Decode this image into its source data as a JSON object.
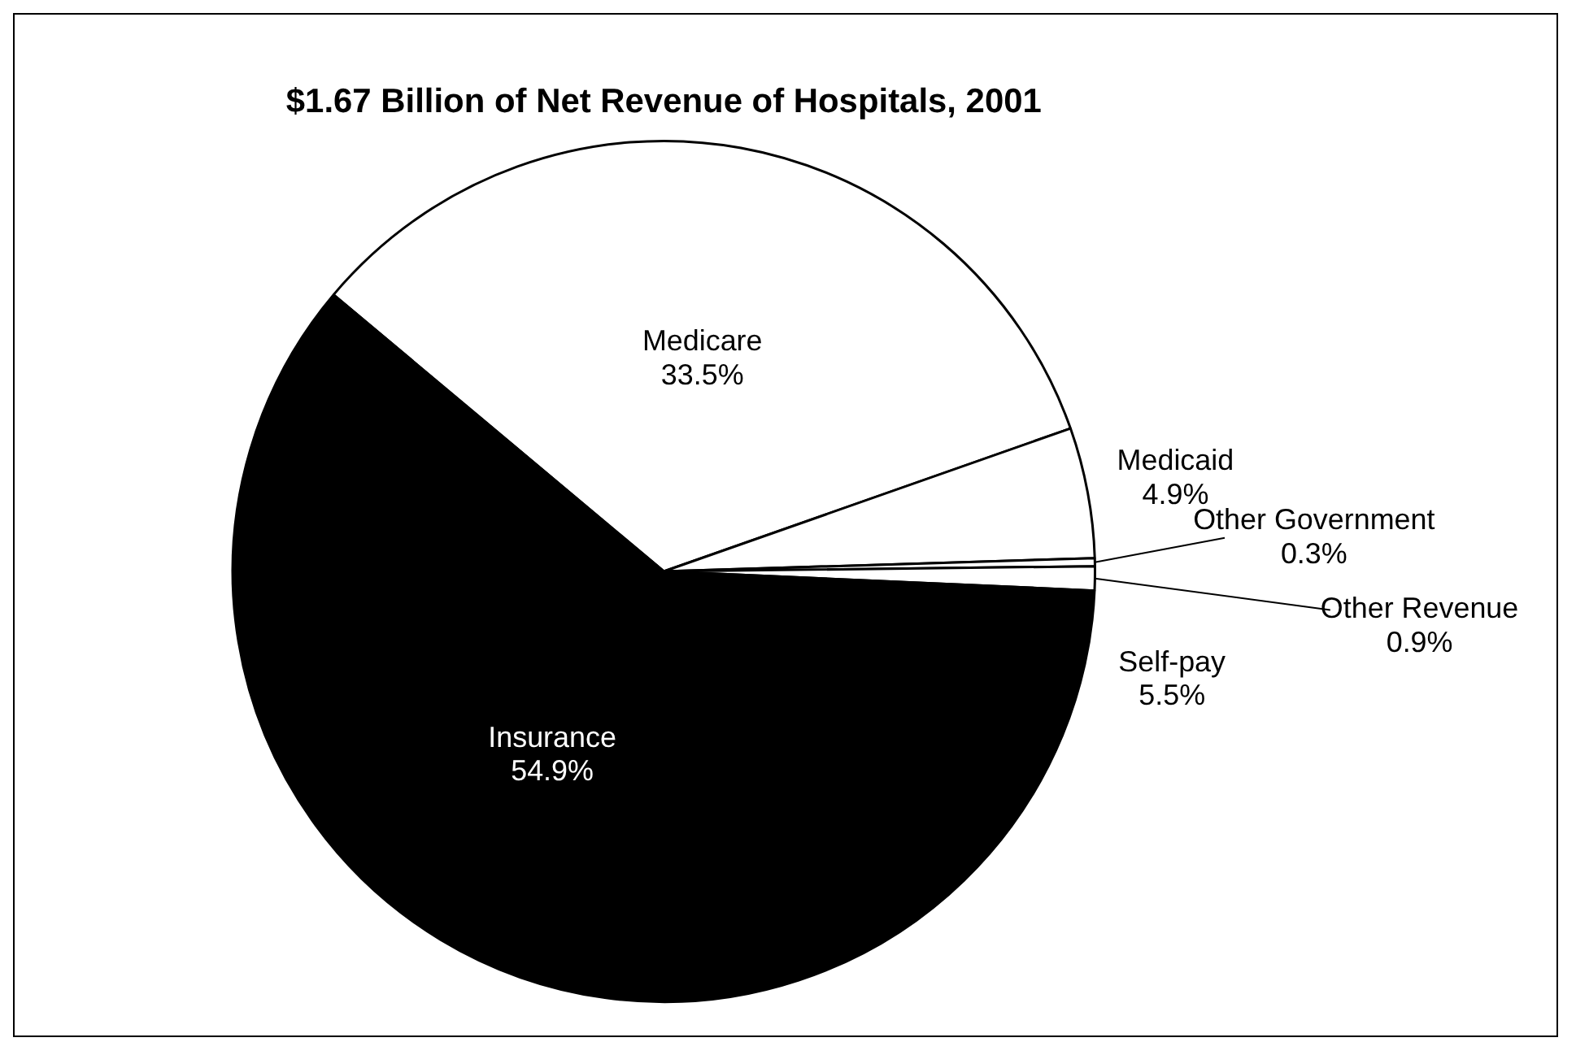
{
  "chart_data": {
    "type": "pie",
    "title": "$1.67 Billion of Net Revenue of Hospitals, 2001",
    "categories": [
      "Medicare",
      "Medicaid",
      "Other Government",
      "Other Revenue",
      "Self-pay",
      "Insurance"
    ],
    "values": [
      33.5,
      4.9,
      0.3,
      0.9,
      5.5,
      54.9
    ],
    "colors": [
      "#ffffff",
      "#ffffff",
      "#ffffff",
      "#ffffff",
      "#000000",
      "#000000"
    ],
    "value_labels": [
      "33.5%",
      "4.9%",
      "0.3%",
      "0.9%",
      "5.5%",
      "54.9%"
    ],
    "legend": false
  }
}
